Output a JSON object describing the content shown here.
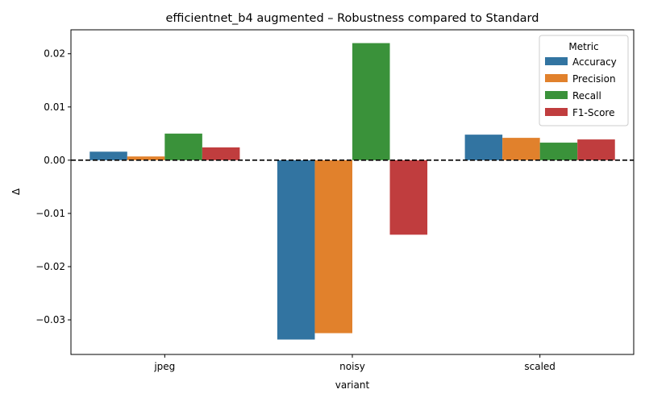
{
  "chart_data": {
    "type": "bar",
    "title": "efficientnet_b4 augmented – Robustness compared to Standard",
    "xlabel": "variant",
    "ylabel": "Δ",
    "categories": [
      "jpeg",
      "noisy",
      "scaled"
    ],
    "ylim": [
      -0.0365,
      0.0245
    ],
    "yticks": [
      -0.03,
      -0.02,
      -0.01,
      0.0,
      0.01,
      0.02
    ],
    "ytick_labels": [
      "−0.03",
      "−0.02",
      "−0.01",
      "0.00",
      "0.01",
      "0.02"
    ],
    "reference_line": {
      "y": 0,
      "style": "dashed",
      "color": "#000000"
    },
    "grid": false,
    "legend": {
      "title": "Metric",
      "position": "top-right"
    },
    "series": [
      {
        "name": "Accuracy",
        "color": "#3274a1",
        "values": [
          0.0016,
          -0.0337,
          0.0048
        ]
      },
      {
        "name": "Precision",
        "color": "#e1812c",
        "values": [
          0.0007,
          -0.0325,
          0.0042
        ]
      },
      {
        "name": "Recall",
        "color": "#3a923a",
        "values": [
          0.005,
          0.022,
          0.0033
        ]
      },
      {
        "name": "F1-Score",
        "color": "#c03d3e",
        "values": [
          0.0024,
          -0.014,
          0.0039
        ]
      }
    ]
  }
}
